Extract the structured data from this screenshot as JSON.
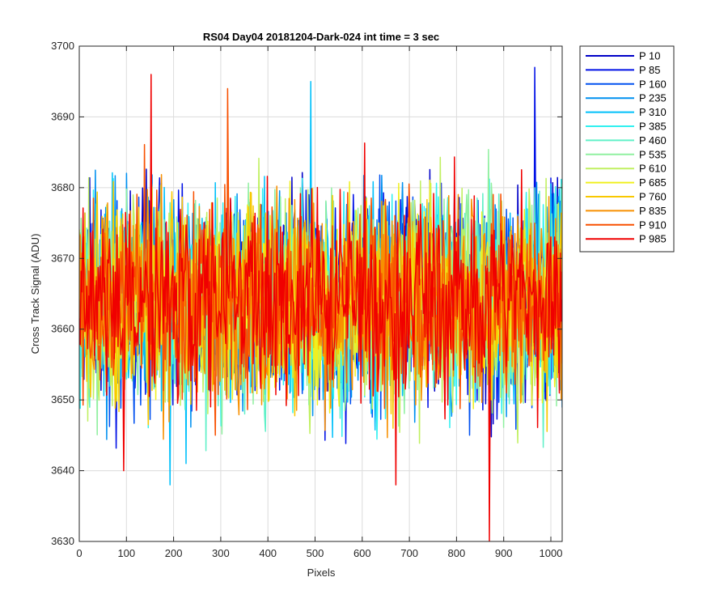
{
  "chart_data": {
    "type": "line",
    "title": "RS04 Day04 20181204-Dark-024 int time = 3 sec",
    "xlabel": "Pixels",
    "ylabel": "Cross Track Signal (ADU)",
    "xlim": [
      0,
      1024
    ],
    "ylim": [
      3630,
      3700
    ],
    "xticks": [
      0,
      100,
      200,
      300,
      400,
      500,
      600,
      700,
      800,
      900,
      1000
    ],
    "yticks": [
      3630,
      3640,
      3650,
      3660,
      3670,
      3680,
      3690,
      3700
    ],
    "grid": true,
    "legend_position": "outside-top-right",
    "noise_model": {
      "mean": 3664,
      "spread": 7,
      "points_per_series": 512
    },
    "series": [
      {
        "name": "P 10",
        "color": "#0000C8"
      },
      {
        "name": "P 85",
        "color": "#0010E6"
      },
      {
        "name": "P 160",
        "color": "#0050F0"
      },
      {
        "name": "P 235",
        "color": "#0090F0"
      },
      {
        "name": "P 310",
        "color": "#00C0FA"
      },
      {
        "name": "P 385",
        "color": "#30F0F0"
      },
      {
        "name": "P 460",
        "color": "#60F0C8"
      },
      {
        "name": "P 535",
        "color": "#90F0A0"
      },
      {
        "name": "P 610",
        "color": "#C0F060"
      },
      {
        "name": "P 685",
        "color": "#F0F020"
      },
      {
        "name": "P 760",
        "color": "#F8C800"
      },
      {
        "name": "P 835",
        "color": "#F89000"
      },
      {
        "name": "P 910",
        "color": "#F85000"
      },
      {
        "name": "P 985",
        "color": "#F00000"
      }
    ],
    "notable_points": [
      {
        "series": "P 985",
        "x": 152,
        "y": 3696
      },
      {
        "series": "P 910",
        "x": 314,
        "y": 3694
      },
      {
        "series": "P 310",
        "x": 490,
        "y": 3695
      },
      {
        "series": "P 85",
        "x": 966,
        "y": 3697
      },
      {
        "series": "P 985",
        "x": 870,
        "y": 3630
      },
      {
        "series": "P 985",
        "x": 672,
        "y": 3638
      },
      {
        "series": "P 310",
        "x": 192,
        "y": 3638
      },
      {
        "series": "P 985",
        "x": 95,
        "y": 3640
      }
    ]
  }
}
